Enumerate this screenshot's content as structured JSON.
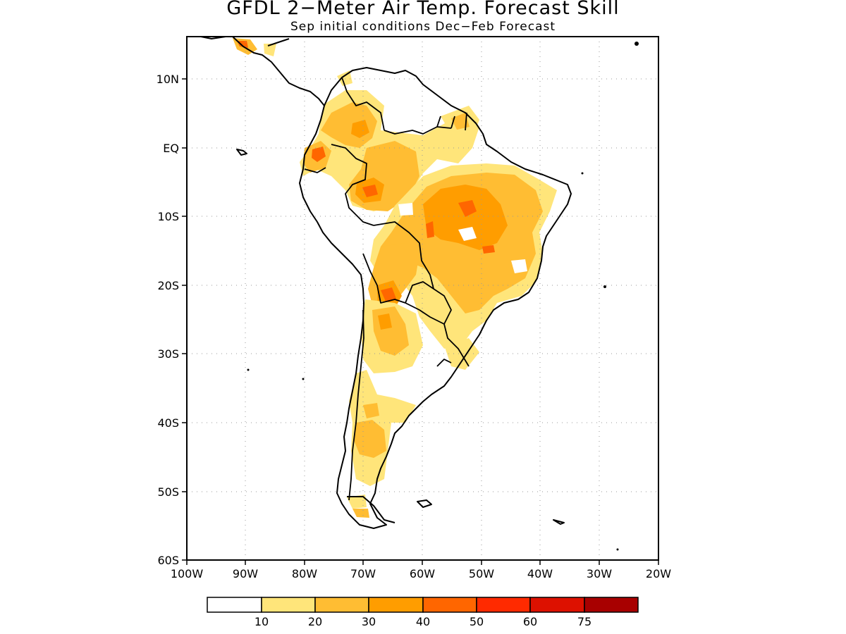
{
  "title": "GFDL 2−Meter Air Temp. Forecast Skill",
  "subtitle": "Sep initial conditions   Dec−Feb Forecast",
  "axes": {
    "x_ticks": [
      "100W",
      "90W",
      "80W",
      "70W",
      "60W",
      "50W",
      "40W",
      "30W",
      "20W"
    ],
    "y_ticks": [
      "10N",
      "EQ",
      "10S",
      "20S",
      "30S",
      "40S",
      "50S",
      "60S"
    ],
    "lon_range": [
      -100,
      -20
    ],
    "lat_range": [
      -60,
      16
    ]
  },
  "colorbar": {
    "labels": [
      "10",
      "20",
      "30",
      "40",
      "50",
      "60",
      "75"
    ],
    "colors": [
      "#ffffff",
      "#ffe57a",
      "#ffbd33",
      "#ff9d00",
      "#ff6600",
      "#ff2a00",
      "#dd1100",
      "#a80000"
    ]
  },
  "colors": {
    "skill_10_20": "#ffe57a",
    "skill_20_30": "#ffbd33",
    "skill_30_40": "#ff9d00",
    "skill_40_50": "#ff6600",
    "skill_50_60": "#ff2a00",
    "coast": "#000000",
    "grid": "#999999"
  }
}
